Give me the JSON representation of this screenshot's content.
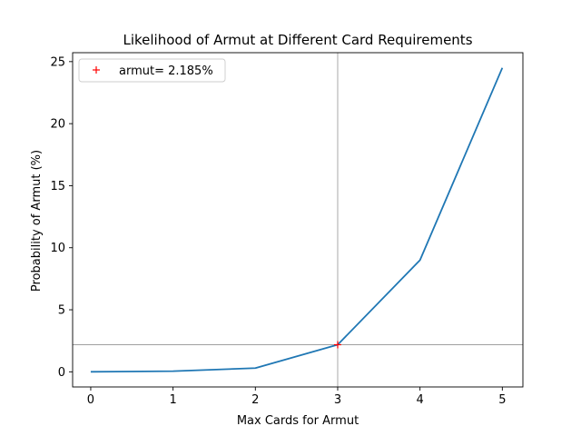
{
  "chart_data": {
    "type": "line",
    "title": "Likelihood of Armut at Different Card Requirements",
    "xlabel": "Max Cards for Armut",
    "ylabel": "Probability of Armut (%)",
    "x": [
      0,
      1,
      2,
      3,
      4,
      5
    ],
    "series": [
      {
        "values": [
          0.0,
          0.05,
          0.3,
          2.185,
          9.0,
          24.5
        ],
        "color": "#1f77b4"
      }
    ],
    "xlim": [
      -0.22,
      5.25
    ],
    "ylim": [
      -1.22,
      25.72
    ],
    "xticks": [
      "0",
      "1",
      "2",
      "3",
      "4",
      "5"
    ],
    "yticks": [
      "0",
      "5",
      "10",
      "15",
      "20",
      "25"
    ],
    "marker": {
      "x": 3,
      "y": 2.185,
      "color": "#ff0000",
      "symbol": "+"
    },
    "reference_lines": {
      "vertical_x": 3,
      "horizontal_y": 2.185,
      "color": "#a0a0a0"
    },
    "legend": {
      "label": "armut= 2.185%",
      "placement": "top-left"
    },
    "grid": false
  }
}
